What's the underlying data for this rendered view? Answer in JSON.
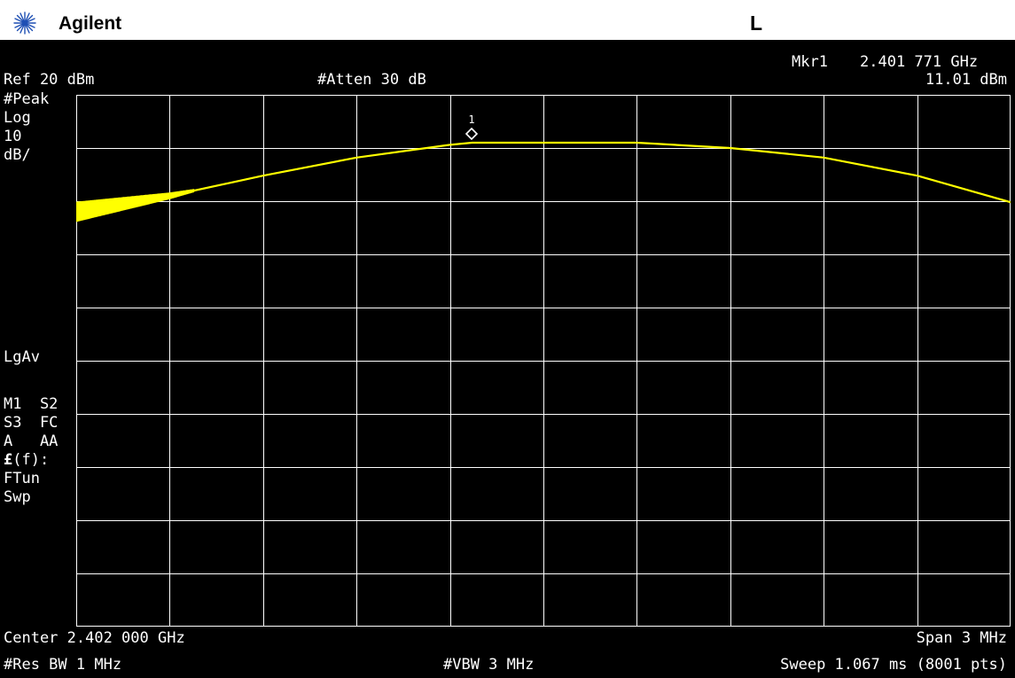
{
  "header": {
    "brand": "Agilent",
    "mode_indicator": "L",
    "logo_icon": "agilent-starburst-icon"
  },
  "marker_readout": {
    "label": "Mkr1",
    "frequency": "2.401 771 GHz",
    "amplitude": "11.01 dBm"
  },
  "settings": {
    "ref_level": "Ref 20 dBm",
    "attenuation": "#Atten 30 dB"
  },
  "left_annotations": {
    "detector": "#Peak",
    "scale_type": "Log",
    "scale_value": "10",
    "scale_unit": "dB/",
    "averaging": "LgAv",
    "trace_line_1": "M1  S2",
    "trace_line_2": "S3  FC",
    "trace_line_3": "A   AA",
    "correction_symbol": "£",
    "correction_label": "(f):",
    "tune_label": "FTun",
    "sweep_label": "Swp"
  },
  "footer": {
    "center_freq": "Center 2.402 000 GHz",
    "span": "Span 3 MHz",
    "res_bw": "#Res BW 1 MHz",
    "vbw": "#VBW 3 MHz",
    "sweep": "Sweep 1.067 ms (8001 pts)"
  },
  "marker": {
    "number": "1"
  },
  "colors": {
    "background": "#000000",
    "grid": "#ffffff",
    "trace": "#ffff00",
    "text": "#ffffff"
  },
  "trace_data": {
    "x_unit": "MHz",
    "y_unit": "dBm",
    "x_range": [
      2400.5,
      2403.5
    ],
    "y_range": [
      -80,
      20
    ],
    "points": [
      [
        2400.5,
        -2.0
      ],
      [
        2400.8,
        1.0
      ],
      [
        2401.1,
        4.8
      ],
      [
        2401.4,
        8.2
      ],
      [
        2401.7,
        10.6
      ],
      [
        2401.771,
        11.0
      ],
      [
        2402.0,
        11.0
      ],
      [
        2402.3,
        11.0
      ],
      [
        2402.6,
        10.0
      ],
      [
        2402.9,
        8.2
      ],
      [
        2403.2,
        4.8
      ],
      [
        2403.5,
        -0.2
      ]
    ]
  }
}
